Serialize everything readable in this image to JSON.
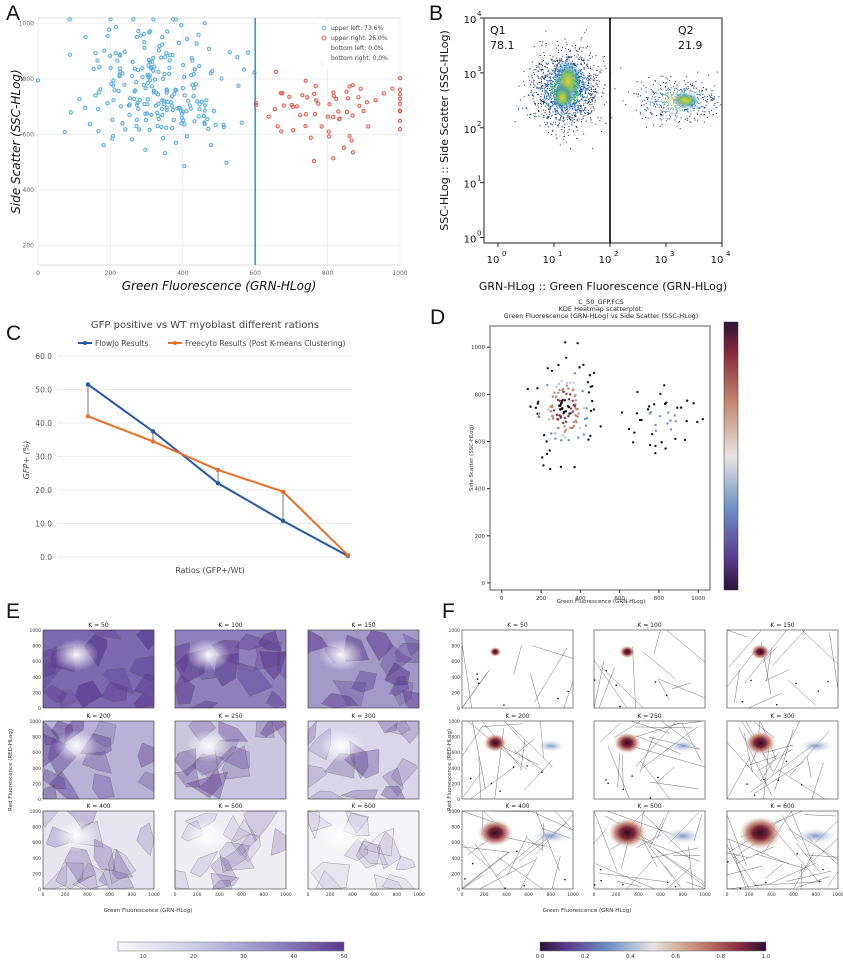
{
  "panel_letters": {
    "a": "A",
    "b": "B",
    "c": "C",
    "d": "D",
    "e": "E",
    "f": "F"
  },
  "chart_data": [
    {
      "id": "A",
      "type": "scatter",
      "xlabel": "Green Fluorescence (GRN-HLog)",
      "ylabel": "Side Scatter (SSC-HLog)",
      "xlim": [
        0,
        1000
      ],
      "ylim": [
        130,
        1020
      ],
      "xticks": [
        0,
        200,
        400,
        600,
        800,
        1000
      ],
      "yticks": [
        200,
        400,
        600,
        800,
        1000
      ],
      "threshold_x": 600,
      "legend": [
        "upper left: 73.6%",
        "upper right: 26.0%",
        "bottom left: 0.0%",
        "bottom right: 0.0%"
      ],
      "colors": {
        "left": "#5aaee0",
        "right": "#ec5b4a",
        "line": "#2d8fd1"
      },
      "series": [
        {
          "name": "upper left",
          "n": 230,
          "center": [
            330,
            760
          ],
          "spread": [
            95,
            120
          ],
          "xrange": [
            0,
            598
          ]
        },
        {
          "name": "upper right",
          "n": 70,
          "center": [
            830,
            700
          ],
          "spread": [
            110,
            80
          ],
          "xrange": [
            602,
            1000
          ]
        }
      ]
    },
    {
      "id": "B",
      "type": "scatter",
      "xlabel": "GRN-HLog :: Green Fluorescence (GRN-HLog)",
      "ylabel": "SSC-HLog :: Side Scatter (SSC-HLog)",
      "scale": "log",
      "xlim_log10": [
        -0.25,
        4
      ],
      "ylim_log10": [
        -0.1,
        4
      ],
      "tick_base": "10",
      "tick_exponents": [
        "0",
        "1",
        "2",
        "3",
        "4"
      ],
      "gate_x_log10": 2,
      "quadrants": [
        {
          "name": "Q1",
          "value": "78.1"
        },
        {
          "name": "Q2",
          "value": "21.9"
        }
      ],
      "clusters": [
        {
          "center_log10": [
            1.2,
            2.7
          ],
          "spread": [
            0.28,
            0.32
          ],
          "fraction": 0.781
        },
        {
          "center_log10": [
            3.2,
            2.5
          ],
          "spread": [
            0.35,
            0.18
          ],
          "fraction": 0.219
        }
      ]
    },
    {
      "id": "C",
      "type": "line",
      "title": "GFP positive vs WT myoblast different rations",
      "xlabel": "Ratios (GFP+/Wt)",
      "ylabel": "GFP+ (%)",
      "ylim": [
        0,
        60
      ],
      "yticks": [
        "0.0",
        "10.0",
        "20.0",
        "30.0",
        "40.0",
        "50.0",
        "60.0"
      ],
      "x_points": 5,
      "series": [
        {
          "name": "FlowJo Results",
          "color": "#2357a8",
          "values": [
            51.5,
            37.5,
            22.0,
            10.8,
            0.3
          ]
        },
        {
          "name": "Freecyto Results (Post K-means Clustering)",
          "color": "#ec6e26",
          "values": [
            42.0,
            34.5,
            26.0,
            19.5,
            0.5
          ]
        }
      ]
    },
    {
      "id": "D",
      "type": "scatter",
      "title_lines": [
        "C_50_GFP.FCS",
        "KDE Heatmap scatterplot:",
        "Green Fluorescence (GRN-HLog) vs Side Scatter (SSC-HLog)"
      ],
      "xlabel": "Green Fluorescence (GRN-HLog)",
      "ylabel": "Side Scatter (SSC-HLog)",
      "xlim": [
        -60,
        1060
      ],
      "ylim": [
        -30,
        1090
      ],
      "xticks": [
        "0",
        "200",
        "400",
        "600",
        "800",
        "1000"
      ],
      "yticks": [
        "0",
        "200",
        "400",
        "600",
        "800",
        "1000"
      ],
      "colormap": "twilight_shifted",
      "clusters": [
        {
          "center": [
            320,
            740
          ],
          "spread": [
            70,
            90
          ],
          "n": 150
        },
        {
          "center": [
            820,
            690
          ],
          "spread": [
            130,
            70
          ],
          "n": 45
        }
      ]
    },
    {
      "id": "E",
      "type": "heatmap",
      "xlabel": "Green Fluorescence (GRN-HLog)",
      "ylabel": "Red Fluorescence (RED-HLog)",
      "panels": [
        "K = 50",
        "K = 100",
        "K = 150",
        "K = 200",
        "K = 250",
        "K = 300",
        "K = 400",
        "K = 500",
        "K = 600"
      ],
      "xticks": [
        "0",
        "200",
        "400",
        "600",
        "800",
        "1000"
      ],
      "yticks": [
        "0",
        "200",
        "400",
        "600",
        "800",
        "1000"
      ],
      "colorbar_range": [
        5,
        50
      ],
      "colorbar_ticks": [
        "10",
        "20",
        "30",
        "40",
        "50"
      ]
    },
    {
      "id": "F",
      "type": "heatmap",
      "xlabel": "Green Fluorescence (GRN-HLog)",
      "ylabel": "Red Fluorescence (RED-HLog)",
      "panels": [
        "K = 50",
        "K = 100",
        "K = 150",
        "K = 200",
        "K = 250",
        "K = 300",
        "K = 400",
        "K = 500",
        "K = 600"
      ],
      "xticks": [
        "0",
        "200",
        "400",
        "600",
        "800",
        "1000"
      ],
      "yticks": [
        "0",
        "200",
        "400",
        "600",
        "800",
        "1000"
      ],
      "colorbar_range": [
        0.0,
        1.0
      ],
      "colorbar_ticks": [
        "0.0",
        "0.2",
        "0.4",
        "0.6",
        "0.8",
        "1.0"
      ]
    }
  ]
}
